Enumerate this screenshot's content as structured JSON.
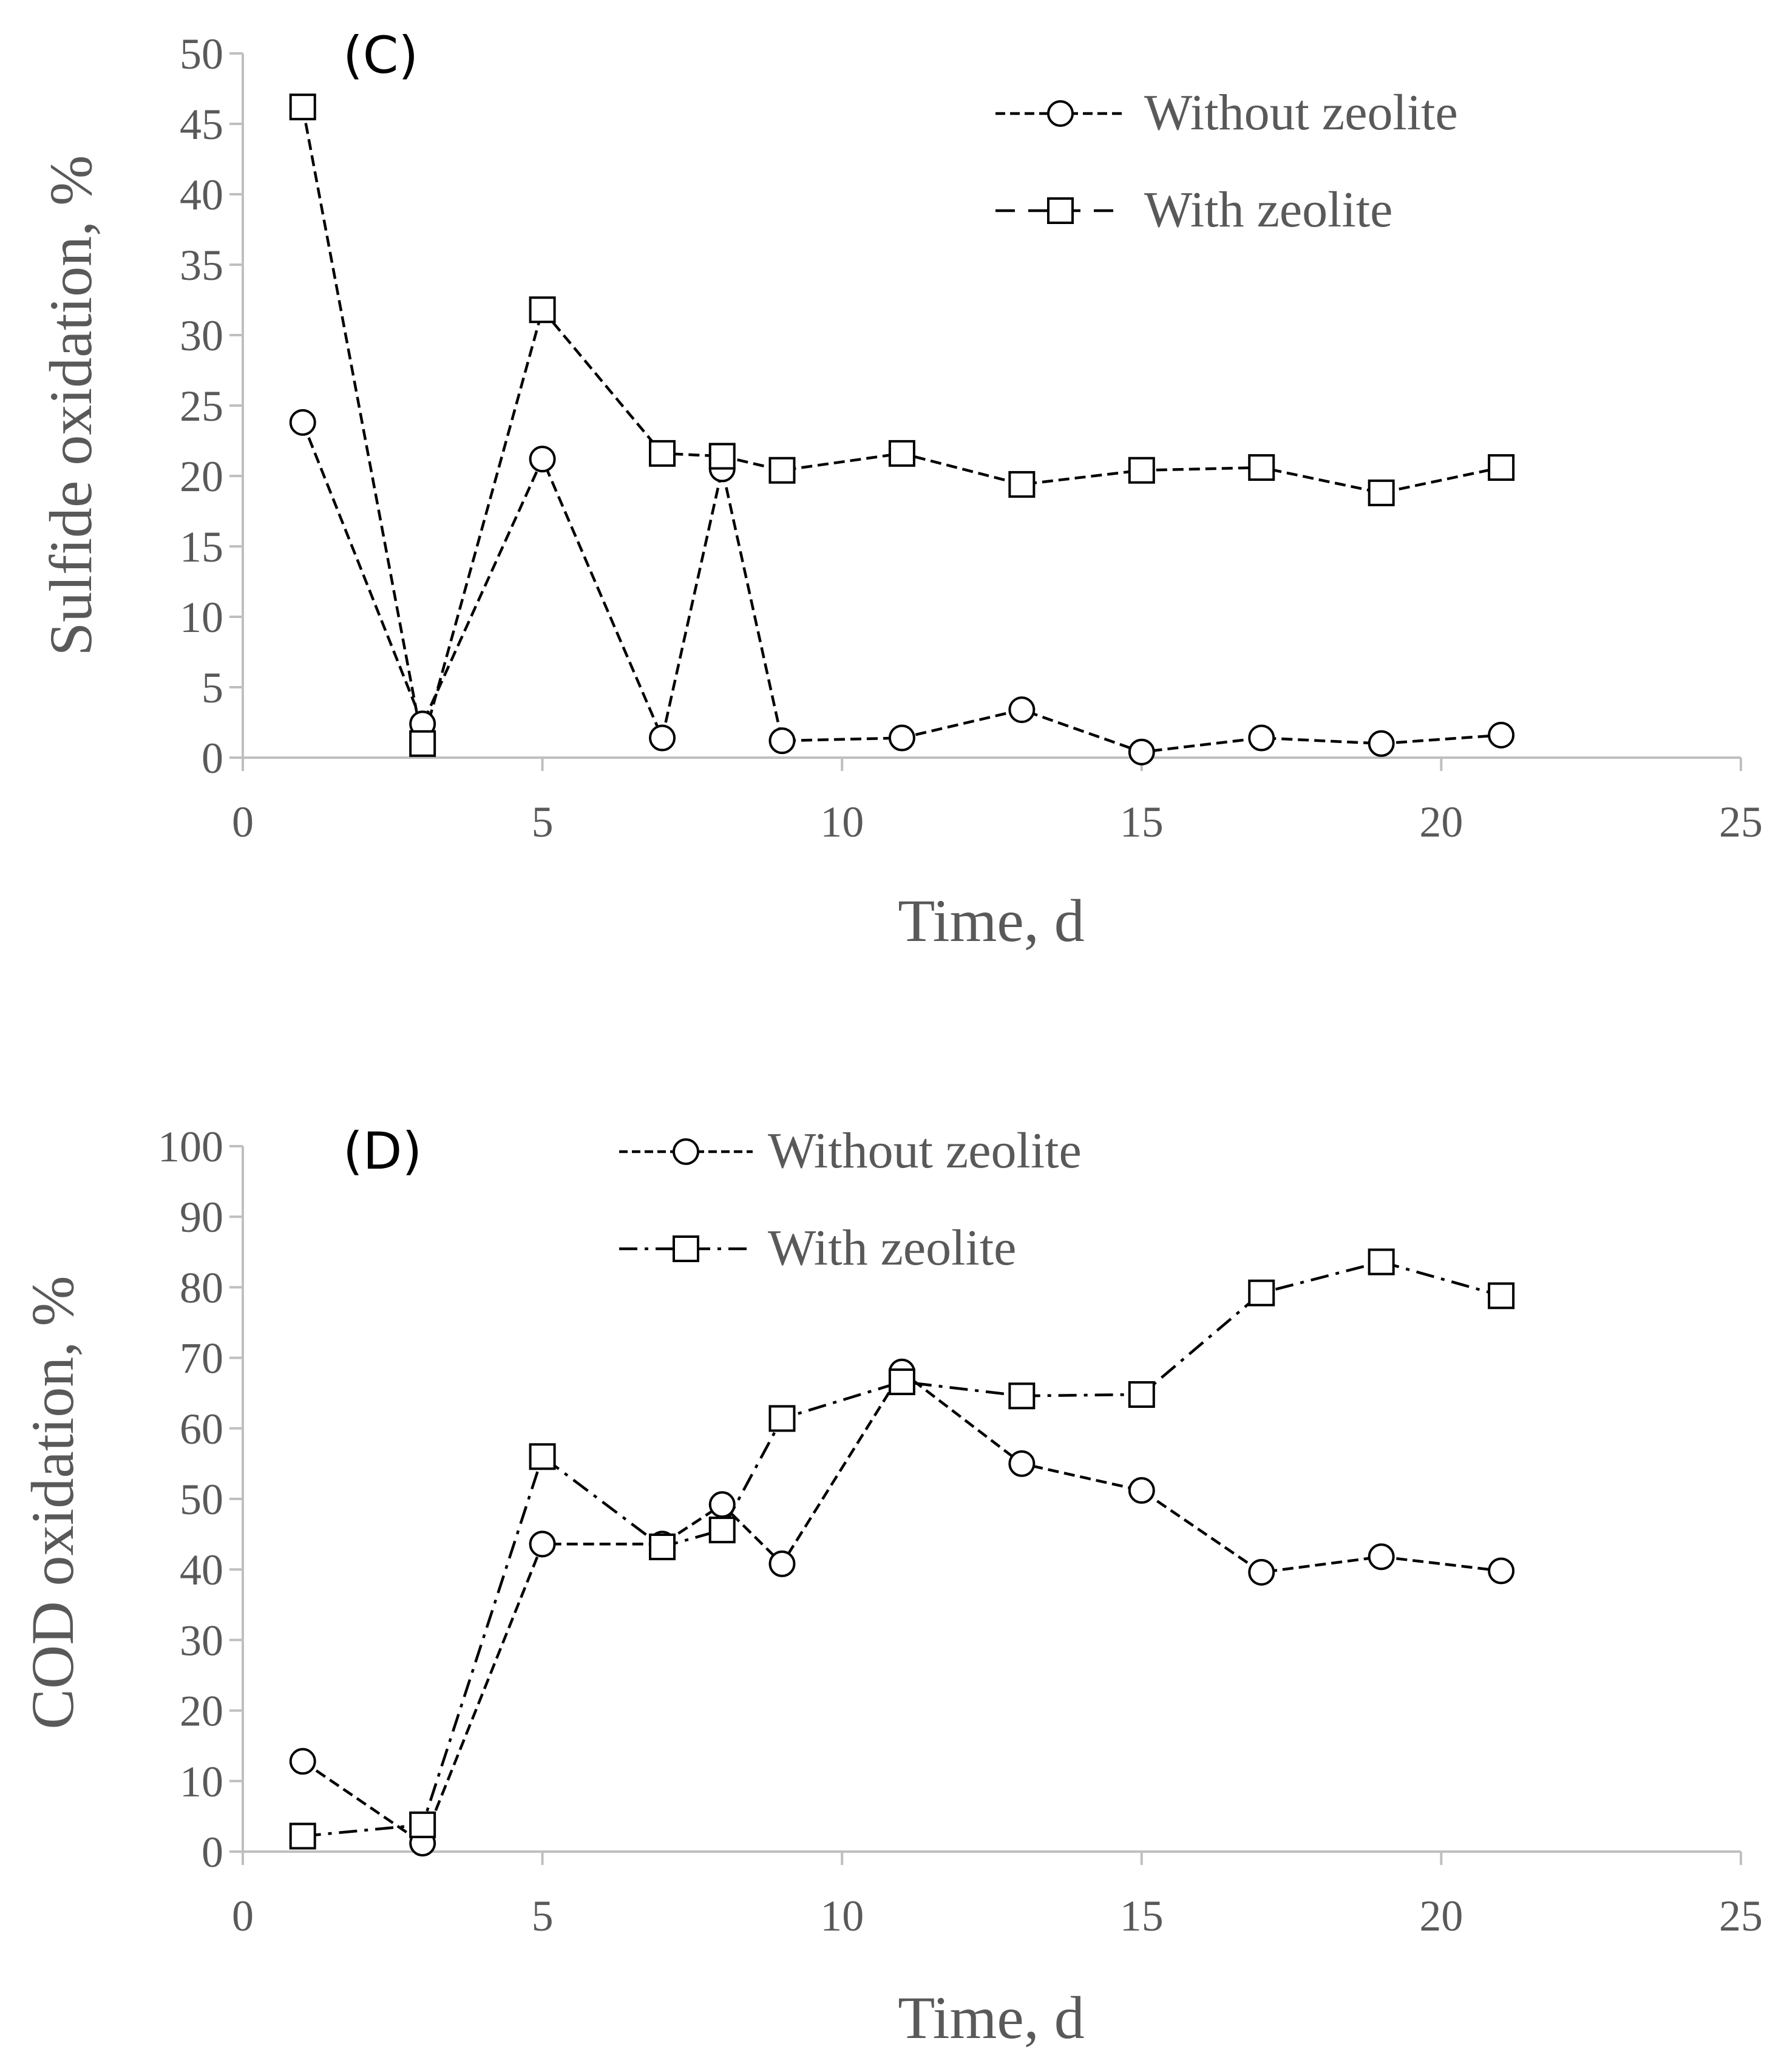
{
  "chart_data": [
    {
      "type": "line",
      "panel_label": "(C)",
      "xlabel": "Time, d",
      "ylabel": "Sulfide oxidation, %",
      "xlim": [
        0,
        25
      ],
      "ylim": [
        0,
        50
      ],
      "xticks": [
        0,
        5,
        10,
        15,
        20,
        25
      ],
      "yticks": [
        0,
        5,
        10,
        15,
        20,
        25,
        30,
        35,
        40,
        45,
        50
      ],
      "grid": false,
      "legend_position": "top-right",
      "series": [
        {
          "name": "Without zeolite",
          "marker": "circle",
          "line_style": "dashed",
          "x": [
            1,
            3,
            5,
            7,
            8,
            9,
            11,
            13,
            15,
            17,
            19,
            21
          ],
          "y": [
            23.8,
            2.4,
            21.2,
            1.4,
            20.5,
            1.2,
            1.4,
            3.4,
            0.4,
            1.4,
            1.0,
            1.6
          ]
        },
        {
          "name": "With zeolite",
          "marker": "square",
          "line_style": "dashed",
          "x": [
            1,
            3,
            5,
            7,
            8,
            9,
            11,
            13,
            15,
            17,
            19,
            21
          ],
          "y": [
            46.2,
            1.0,
            31.8,
            21.6,
            21.4,
            20.4,
            21.6,
            19.4,
            20.4,
            20.6,
            18.8,
            20.6
          ]
        }
      ]
    },
    {
      "type": "line",
      "panel_label": "(D)",
      "xlabel": "Time, d",
      "ylabel": "COD oxidation, %",
      "xlim": [
        0,
        25
      ],
      "ylim": [
        0,
        100
      ],
      "xticks": [
        0,
        5,
        10,
        15,
        20,
        25
      ],
      "yticks": [
        0,
        10,
        20,
        30,
        40,
        50,
        60,
        70,
        80,
        90,
        100
      ],
      "grid": false,
      "legend_position": "top-center",
      "series": [
        {
          "name": "Without zeolite",
          "marker": "circle",
          "line_style": "dashed",
          "x": [
            1,
            3,
            5,
            7,
            8,
            9,
            11,
            13,
            15,
            17,
            19,
            21
          ],
          "y": [
            12.8,
            1.2,
            43.6,
            43.6,
            49.2,
            40.8,
            68.0,
            55.0,
            51.2,
            39.6,
            41.8,
            39.8
          ]
        },
        {
          "name": "With zeolite",
          "marker": "square",
          "line_style": "dash-dot",
          "x": [
            1,
            3,
            5,
            7,
            8,
            9,
            11,
            13,
            15,
            17,
            19,
            21
          ],
          "y": [
            2.2,
            3.8,
            56.0,
            43.2,
            45.6,
            61.4,
            66.6,
            64.6,
            64.8,
            79.2,
            83.6,
            78.8
          ]
        }
      ]
    }
  ]
}
